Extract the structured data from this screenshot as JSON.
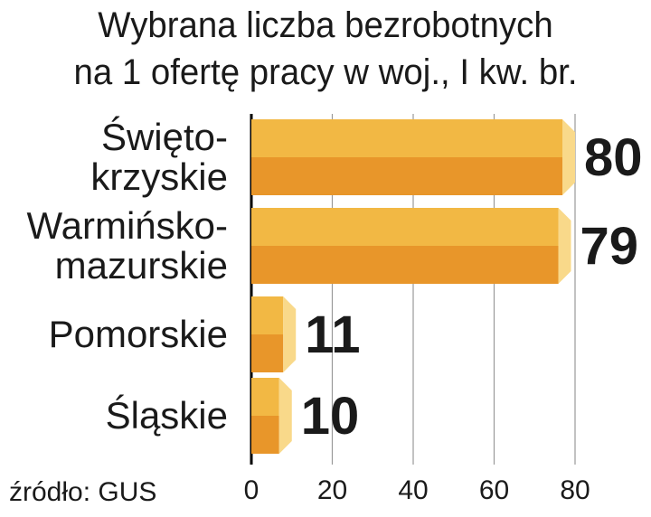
{
  "chart_data": {
    "type": "bar",
    "orientation": "horizontal",
    "title_lines": [
      "Wybrana liczba bezrobotnych",
      "na 1 ofertę pracy w woj., I kw. br."
    ],
    "categories": [
      [
        "Święto-",
        "krzyskie"
      ],
      [
        "Warmińsko-",
        "mazurskie"
      ],
      [
        "Pomorskie"
      ],
      [
        "Śląskie"
      ]
    ],
    "values": [
      80,
      79,
      11,
      10
    ],
    "value_labels": [
      "80",
      "79",
      "11",
      "10"
    ],
    "xlim": [
      0,
      80
    ],
    "xticks": [
      "0",
      "20",
      "40",
      "60",
      "80"
    ],
    "grid": true,
    "legend": "none",
    "colors": {
      "bar_top": "#f2b844",
      "bar_bottom": "#e8962a",
      "bar_cap": "#f9d98a",
      "grid": "#9a9a9a",
      "axis": "#000000",
      "text": "#1a1a1a"
    }
  },
  "source": "źródło: GUS"
}
